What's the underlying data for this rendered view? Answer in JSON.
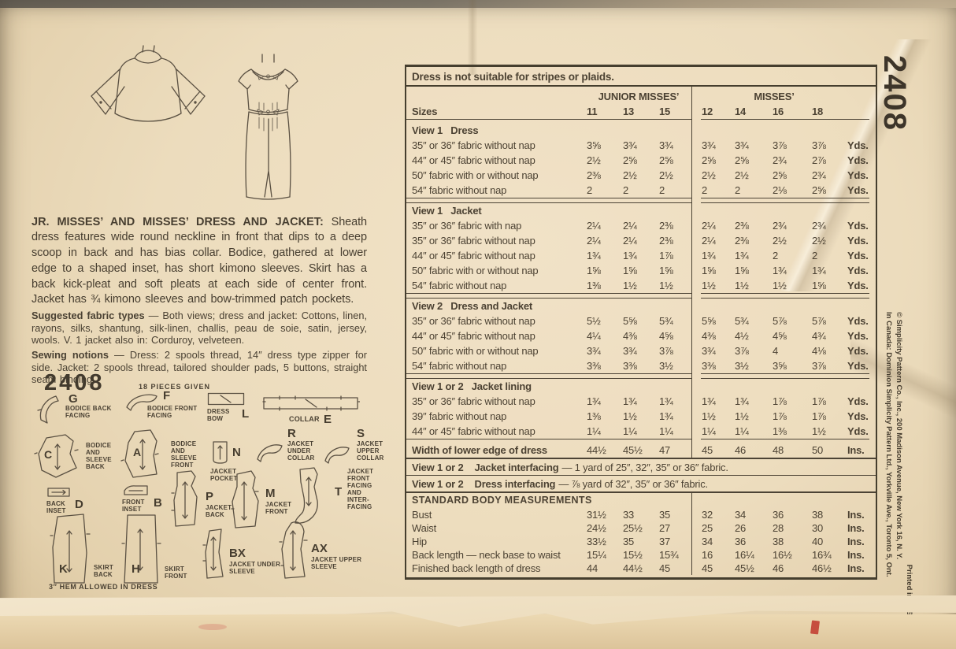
{
  "colors": {
    "paper": "#ecdcbd",
    "ink": "#463d30",
    "rule": "#4c4335",
    "red_mark": "#c23f33"
  },
  "edge": {
    "pattern_number": "2408",
    "printed_in": "Printed in U. S. A.",
    "copyright_us": "© Simplicity Pattern Co., Inc., 200 Madison Avenue, New York 16, N. Y.",
    "copyright_canada": "In Canada: Dominion Simplicity Pattern Ltd., Yorkville Ave., Toronto 5, Ont."
  },
  "description": {
    "title": "JR. MISSES’ AND MISSES’ DRESS AND JACKET:",
    "body": " Sheath dress features wide round neckline in front that dips to a deep scoop in back and has bias collar. Bodice, gathered at lower edge to a shaped inset, has short kimono sleeves. Skirt has a back kick-pleat and soft pleats at each side of center front. Jacket has ¾ kimono sleeves and bow-trimmed patch pockets.",
    "fabric_lead": "Suggested fabric types",
    "fabric_body": " — Both views; dress and jacket: Cottons, linen, rayons, silks, shantung, silk-linen, challis, peau de soie, satin, jersey, wools. V. 1 jacket also in: Corduroy, velveteen.",
    "notions_lead": "Sewing notions",
    "notions_body": " — Dress: 2 spools thread, 14″ dress type zipper for side. Jacket: 2 spools thread, tailored shoulder pads, 5 buttons, straight seam binding.",
    "big_number": "2408",
    "pieces_given": "18 PIECES GIVEN",
    "hem_note": "3″ HEM ALLOWED IN DRESS"
  },
  "pieces": [
    {
      "letter": "G",
      "label": "BODICE BACK FACING"
    },
    {
      "letter": "F",
      "label": "BODICE FRONT FACING"
    },
    {
      "letter": "L",
      "label": "DRESS BOW"
    },
    {
      "letter": "E",
      "label": "COLLAR"
    },
    {
      "letter": "C",
      "label": "BODICE AND SLEEVE BACK"
    },
    {
      "letter": "A",
      "label": "BODICE AND SLEEVE FRONT"
    },
    {
      "letter": "N",
      "label": "JACKET POCKET"
    },
    {
      "letter": "R",
      "label": "JACKET UNDER COLLAR"
    },
    {
      "letter": "S",
      "label": "JACKET UPPER COLLAR"
    },
    {
      "letter": "D",
      "label": "BACK INSET"
    },
    {
      "letter": "B",
      "label": "FRONT INSET"
    },
    {
      "letter": "P",
      "label": "JACKET BACK"
    },
    {
      "letter": "M",
      "label": "JACKET FRONT"
    },
    {
      "letter": "T",
      "label": "JACKET FRONT FACING AND INTER-FACING"
    },
    {
      "letter": "K",
      "label": "SKIRT BACK"
    },
    {
      "letter": "H",
      "label": "SKIRT FRONT"
    },
    {
      "letter": "BX",
      "label": "JACKET UNDER SLEEVE"
    },
    {
      "letter": "AX",
      "label": "JACKET UPPER SLEEVE"
    }
  ],
  "table": {
    "note": "Dress is not suitable for stripes or plaids.",
    "sizes_label": "Sizes",
    "size_groups": [
      {
        "name": "JUNIOR MISSES’",
        "sizes": [
          "11",
          "13",
          "15"
        ]
      },
      {
        "name": "MISSES’",
        "sizes": [
          "12",
          "14",
          "16",
          "18"
        ]
      }
    ],
    "sections": [
      {
        "heading": "View 1   Dress",
        "rows": [
          {
            "label": "35″ or 36″ fabric without nap",
            "values": [
              "3⅝",
              "3¾",
              "3¾",
              "3¾",
              "3¾",
              "3⅞",
              "3⅞"
            ],
            "unit": "Yds."
          },
          {
            "label": "44″ or 45″ fabric without nap",
            "values": [
              "2½",
              "2⅝",
              "2⅝",
              "2⅝",
              "2⅝",
              "2¾",
              "2⅞"
            ],
            "unit": "Yds."
          },
          {
            "label": "50″ fabric with or without nap",
            "values": [
              "2⅜",
              "2½",
              "2½",
              "2½",
              "2½",
              "2⅝",
              "2¾"
            ],
            "unit": "Yds."
          },
          {
            "label": "54″ fabric without nap",
            "values": [
              "2",
              "2",
              "2",
              "2",
              "2",
              "2⅛",
              "2⅝"
            ],
            "unit": "Yds."
          }
        ]
      },
      {
        "heading": "View 1   Jacket",
        "rows": [
          {
            "label": "35″ or 36″ fabric with nap",
            "values": [
              "2¼",
              "2¼",
              "2⅜",
              "2¼",
              "2⅜",
              "2¾",
              "2¾"
            ],
            "unit": "Yds."
          },
          {
            "label": "35″ or 36″ fabric without nap",
            "values": [
              "2¼",
              "2¼",
              "2⅜",
              "2¼",
              "2⅜",
              "2½",
              "2½"
            ],
            "unit": "Yds."
          },
          {
            "label": "44″ or 45″ fabric without nap",
            "values": [
              "1¾",
              "1¾",
              "1⅞",
              "1¾",
              "1¾",
              "2",
              "2"
            ],
            "unit": "Yds."
          },
          {
            "label": "50″ fabric with or without nap",
            "values": [
              "1⅝",
              "1⅝",
              "1⅝",
              "1⅝",
              "1⅝",
              "1¾",
              "1¾"
            ],
            "unit": "Yds."
          },
          {
            "label": "54″ fabric without nap",
            "values": [
              "1⅜",
              "1½",
              "1½",
              "1½",
              "1½",
              "1½",
              "1⅝"
            ],
            "unit": "Yds."
          }
        ]
      },
      {
        "heading": "View 2   Dress and Jacket",
        "rows": [
          {
            "label": "35″ or 36″ fabric without nap",
            "values": [
              "5½",
              "5⅝",
              "5¾",
              "5⅝",
              "5¾",
              "5⅞",
              "5⅞"
            ],
            "unit": "Yds."
          },
          {
            "label": "44″ or 45″ fabric without nap",
            "values": [
              "4¼",
              "4⅜",
              "4⅝",
              "4⅜",
              "4½",
              "4⅝",
              "4¾"
            ],
            "unit": "Yds."
          },
          {
            "label": "50″ fabric with or without nap",
            "values": [
              "3¾",
              "3¾",
              "3⅞",
              "3¾",
              "3⅞",
              "4",
              "4⅛"
            ],
            "unit": "Yds."
          },
          {
            "label": "54″ fabric without nap",
            "values": [
              "3⅜",
              "3⅜",
              "3½",
              "3⅜",
              "3½",
              "3⅝",
              "3⅞"
            ],
            "unit": "Yds."
          }
        ]
      },
      {
        "heading": "View 1 or 2   Jacket lining",
        "rows": [
          {
            "label": "35″ or 36″ fabric without nap",
            "values": [
              "1¾",
              "1¾",
              "1¾",
              "1¾",
              "1¾",
              "1⅞",
              "1⅞"
            ],
            "unit": "Yds."
          },
          {
            "label": "39″ fabric without nap",
            "values": [
              "1⅜",
              "1½",
              "1¾",
              "1½",
              "1½",
              "1⅞",
              "1⅞"
            ],
            "unit": "Yds."
          },
          {
            "label": "44″ or 45″ fabric without nap",
            "values": [
              "1¼",
              "1¼",
              "1¼",
              "1¼",
              "1¼",
              "1⅜",
              "1½"
            ],
            "unit": "Yds."
          }
        ]
      }
    ],
    "width_row": {
      "label": "Width of lower edge of dress",
      "values": [
        "44½",
        "45½",
        "47",
        "45",
        "46",
        "48",
        "50"
      ],
      "unit": "Ins."
    },
    "interfacing": [
      {
        "lead": "View 1 or 2",
        "name": "Jacket interfacing",
        "rest": "— 1 yard of 25″, 32″, 35″ or 36″ fabric."
      },
      {
        "lead": "View 1 or 2",
        "name": "Dress interfacing",
        "rest": "— ⅞ yard of 32″, 35″ or 36″ fabric."
      }
    ],
    "body_measurements": {
      "heading": "STANDARD BODY MEASUREMENTS",
      "rows": [
        {
          "label": "Bust",
          "values": [
            "31½",
            "33",
            "35",
            "32",
            "34",
            "36",
            "38"
          ],
          "unit": "Ins."
        },
        {
          "label": "Waist",
          "values": [
            "24½",
            "25½",
            "27",
            "25",
            "26",
            "28",
            "30"
          ],
          "unit": "Ins."
        },
        {
          "label": "Hip",
          "values": [
            "33½",
            "35",
            "37",
            "34",
            "36",
            "38",
            "40"
          ],
          "unit": "Ins."
        },
        {
          "label": "Back length — neck base to waist",
          "values": [
            "15¼",
            "15½",
            "15¾",
            "16",
            "16¼",
            "16½",
            "16¾"
          ],
          "unit": "Ins."
        },
        {
          "label": "Finished back length of dress",
          "values": [
            "44",
            "44½",
            "45",
            "45",
            "45½",
            "46",
            "46½"
          ],
          "unit": "Ins."
        }
      ]
    }
  }
}
